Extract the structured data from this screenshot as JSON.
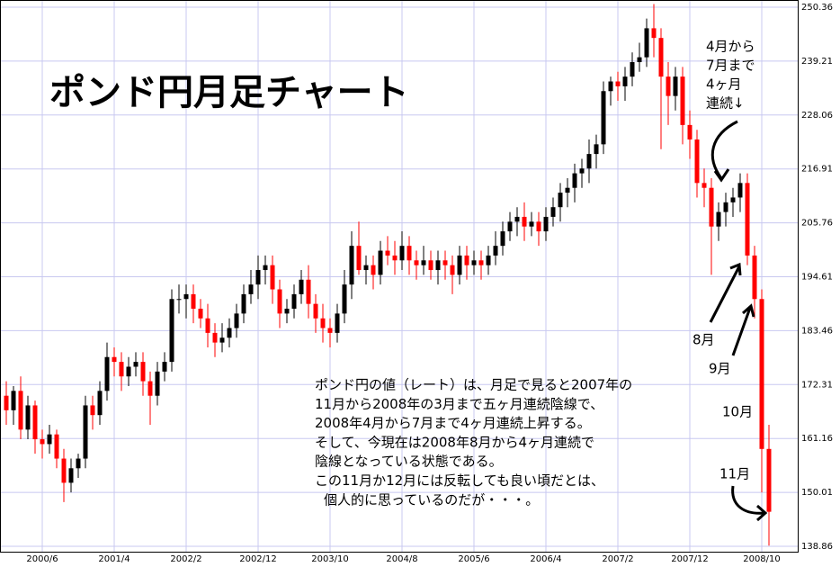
{
  "chart_data": {
    "type": "candlestick",
    "title": "ポンド円月足チャート",
    "categories": [
      null,
      null,
      null,
      null,
      null,
      "2000/6",
      null,
      null,
      null,
      null,
      null,
      null,
      null,
      null,
      null,
      "2001/4",
      null,
      null,
      null,
      null,
      null,
      null,
      null,
      null,
      null,
      "2002/2",
      null,
      null,
      null,
      null,
      null,
      null,
      null,
      null,
      null,
      "2002/12",
      null,
      null,
      null,
      null,
      null,
      null,
      null,
      null,
      null,
      "2003/10",
      null,
      null,
      null,
      null,
      null,
      null,
      null,
      null,
      null,
      "2004/8",
      null,
      null,
      null,
      null,
      null,
      null,
      null,
      null,
      null,
      "2005/6",
      null,
      null,
      null,
      null,
      null,
      null,
      null,
      null,
      null,
      "2006/4",
      null,
      null,
      null,
      null,
      null,
      null,
      null,
      null,
      null,
      "2007/2",
      null,
      null,
      null,
      null,
      null,
      null,
      null,
      null,
      null,
      "2007/12",
      null,
      null,
      null,
      null,
      null,
      null,
      null,
      null,
      null,
      "2008/10",
      null
    ],
    "open": [
      170,
      167,
      171,
      163,
      168,
      161,
      160,
      162,
      157,
      152,
      155,
      157,
      168,
      166,
      171,
      178,
      177,
      174,
      176,
      177,
      173,
      170,
      175,
      177,
      190,
      190,
      191,
      188,
      186,
      183,
      181,
      182,
      184,
      187,
      191,
      193,
      196,
      197,
      192,
      187,
      188,
      191,
      194,
      189,
      186,
      184,
      183,
      187,
      193,
      201,
      196,
      197,
      195,
      200,
      199,
      198,
      201,
      198,
      197,
      198,
      196,
      198,
      197,
      195,
      199,
      197,
      198,
      197,
      199,
      201,
      204,
      206,
      207,
      205,
      206,
      204,
      207,
      209,
      212,
      213,
      216,
      217,
      220,
      222,
      233,
      235,
      234,
      236,
      239,
      240,
      246,
      244,
      236,
      232,
      236,
      226,
      223,
      214,
      213,
      205,
      208,
      210,
      211,
      214,
      199,
      190,
      159
    ],
    "high": [
      173,
      172,
      174,
      170,
      169,
      163,
      164,
      163,
      159,
      157,
      158,
      170,
      170,
      173,
      181,
      180,
      179,
      178,
      179,
      179,
      175,
      177,
      179,
      192,
      193,
      193,
      193,
      190,
      189,
      185,
      185,
      186,
      189,
      193,
      196,
      199,
      199,
      199,
      194,
      190,
      193,
      196,
      197,
      191,
      189,
      186,
      189,
      196,
      204,
      206,
      199,
      199,
      202,
      203,
      202,
      204,
      203,
      200,
      201,
      200,
      200,
      200,
      199,
      201,
      201,
      200,
      200,
      201,
      204,
      206,
      208,
      209,
      210,
      208,
      208,
      209,
      211,
      214,
      215,
      218,
      219,
      223,
      224,
      235,
      236,
      237,
      238,
      241,
      243,
      248,
      251,
      246,
      239,
      238,
      238,
      229,
      225,
      217,
      215,
      210,
      212,
      213,
      216,
      216,
      201,
      192,
      164
    ],
    "low": [
      164,
      164,
      161,
      161,
      158,
      157,
      158,
      155,
      148,
      150,
      153,
      155,
      163,
      164,
      169,
      174,
      171,
      172,
      174,
      170,
      164,
      168,
      173,
      175,
      187,
      186,
      185,
      184,
      180,
      178,
      179,
      180,
      182,
      185,
      189,
      190,
      193,
      189,
      184,
      185,
      186,
      189,
      186,
      183,
      181,
      180,
      181,
      185,
      190,
      195,
      193,
      192,
      193,
      197,
      195,
      196,
      195,
      194,
      195,
      194,
      193,
      194,
      191,
      193,
      194,
      195,
      194,
      195,
      197,
      199,
      202,
      203,
      202,
      203,
      201,
      202,
      205,
      206,
      209,
      210,
      213,
      214,
      217,
      220,
      230,
      231,
      231,
      234,
      237,
      238,
      240,
      221,
      226,
      229,
      222,
      219,
      211,
      209,
      195,
      202,
      205,
      207,
      208,
      197,
      186,
      150,
      139
    ],
    "close": [
      167,
      171,
      163,
      168,
      161,
      160,
      162,
      157,
      152,
      155,
      157,
      168,
      166,
      171,
      178,
      177,
      174,
      176,
      177,
      173,
      170,
      175,
      177,
      190,
      190,
      191,
      188,
      186,
      183,
      181,
      182,
      184,
      187,
      191,
      193,
      196,
      197,
      192,
      187,
      188,
      191,
      194,
      189,
      186,
      184,
      183,
      187,
      193,
      201,
      196,
      197,
      195,
      200,
      199,
      198,
      201,
      198,
      197,
      198,
      196,
      198,
      197,
      195,
      199,
      197,
      198,
      197,
      199,
      201,
      204,
      206,
      207,
      205,
      206,
      204,
      207,
      209,
      212,
      213,
      216,
      217,
      220,
      222,
      233,
      235,
      234,
      236,
      239,
      240,
      246,
      244,
      236,
      232,
      236,
      226,
      223,
      214,
      213,
      205,
      208,
      210,
      211,
      214,
      199,
      190,
      159,
      146
    ],
    "up_color": "#000000",
    "down_color": "#ff0000",
    "ylim": [
      138.86,
      250.36
    ],
    "yticks": [
      138.86,
      150.01,
      161.16,
      172.31,
      183.46,
      194.61,
      205.76,
      216.91,
      228.06,
      239.21,
      250.36
    ],
    "grid": true,
    "annotations": {
      "note": [
        "ポンド円の値（レート）は、月足で見ると2007年の",
        "11月から2008年の3月まで五ヶ月連続陰線で、",
        "2008年4月から7月まで4ヶ月連続上昇する。",
        "そして、今現在は2008年8月から4ヶ月連続で",
        "陰線となっている状態である。",
        "この11月か12月には反転しても良い頃だとは、",
        "個人的に思っているのだが・・・。"
      ],
      "streak": [
        "4月から",
        "7月まで",
        "4ヶ月",
        "連続↓"
      ],
      "months": [
        "8月",
        "9月",
        "10月",
        "11月"
      ]
    }
  }
}
